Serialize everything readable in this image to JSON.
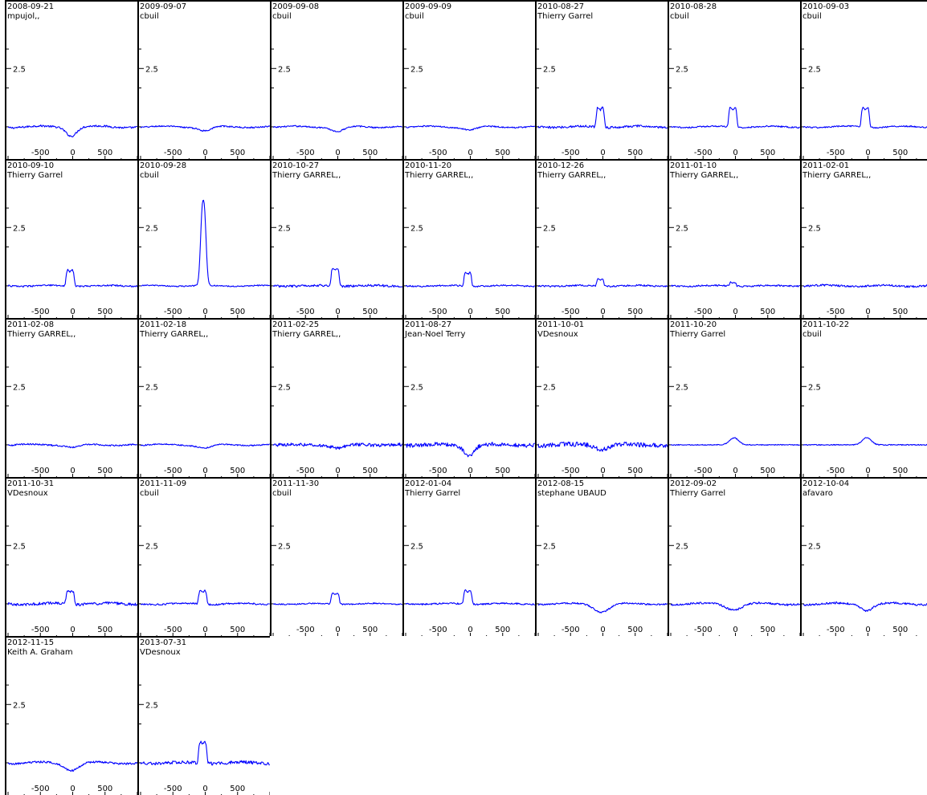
{
  "chart_data": {
    "type": "line",
    "line_color": "#0000ff",
    "xlim": [
      -1000,
      1000
    ],
    "x_ticks": [
      -500,
      0,
      500
    ],
    "x_tick_labels": [
      "-500",
      "0",
      "500"
    ],
    "y_tick_label": "2.5",
    "y_label_value": 2.5,
    "ylim": [
      0.4,
      3.6
    ],
    "panels": [
      {
        "date": "2008-09-21",
        "observer": "mpujol,,",
        "feature": "absorption",
        "depth": 0.22,
        "center": -20,
        "width": 180,
        "noise": 0.025,
        "wave": 0.04
      },
      {
        "date": "2009-09-07",
        "observer": "cbuil",
        "feature": "absorption",
        "depth": 0.1,
        "center": 0,
        "width": 220,
        "noise": 0.018,
        "wave": 0.03
      },
      {
        "date": "2009-09-08",
        "observer": "cbuil",
        "feature": "absorption",
        "depth": 0.12,
        "center": 0,
        "width": 220,
        "noise": 0.018,
        "wave": 0.03
      },
      {
        "date": "2009-09-09",
        "observer": "cbuil",
        "feature": "absorption",
        "depth": 0.08,
        "center": 0,
        "width": 220,
        "noise": 0.018,
        "wave": 0.03
      },
      {
        "date": "2010-08-27",
        "observer": "Thierry Garrel",
        "feature": "double",
        "peak": 0.55,
        "center": -40,
        "width": 150,
        "noise": 0.03,
        "wave": 0.03
      },
      {
        "date": "2010-08-28",
        "observer": "cbuil",
        "feature": "double",
        "peak": 0.55,
        "center": -40,
        "width": 150,
        "noise": 0.018,
        "wave": 0.03
      },
      {
        "date": "2010-09-03",
        "observer": "cbuil",
        "feature": "double",
        "peak": 0.55,
        "center": -40,
        "width": 150,
        "noise": 0.018,
        "wave": 0.03
      },
      {
        "date": "2010-09-10",
        "observer": "Thierry Garrel",
        "feature": "double",
        "peak": 0.45,
        "center": -40,
        "width": 150,
        "noise": 0.02,
        "wave": 0.02
      },
      {
        "date": "2010-09-28",
        "observer": "cbuil",
        "feature": "tall",
        "peak": 2.2,
        "center": -30,
        "width": 95,
        "noise": 0.015,
        "wave": 0.02
      },
      {
        "date": "2010-10-27",
        "observer": "Thierry GARREL,,",
        "feature": "double",
        "peak": 0.5,
        "center": -40,
        "width": 150,
        "noise": 0.03,
        "wave": 0.02
      },
      {
        "date": "2010-11-20",
        "observer": "Thierry GARREL,,",
        "feature": "double",
        "peak": 0.38,
        "center": -40,
        "width": 140,
        "noise": 0.02,
        "wave": 0.02
      },
      {
        "date": "2010-12-26",
        "observer": "Thierry GARREL,,",
        "feature": "double",
        "peak": 0.2,
        "center": -40,
        "width": 130,
        "noise": 0.02,
        "wave": 0.02
      },
      {
        "date": "2011-01-10",
        "observer": "Thierry GARREL,,",
        "feature": "double",
        "peak": 0.1,
        "center": -40,
        "width": 120,
        "noise": 0.02,
        "wave": 0.02
      },
      {
        "date": "2011-02-01",
        "observer": "Thierry GARREL,,",
        "feature": "flat",
        "noise": 0.025,
        "wave": 0.03
      },
      {
        "date": "2011-02-08",
        "observer": "Thierry GARREL,,",
        "feature": "absorption",
        "depth": 0.06,
        "center": 0,
        "width": 220,
        "noise": 0.02,
        "wave": 0.03
      },
      {
        "date": "2011-02-18",
        "observer": "Thierry GARREL,,",
        "feature": "absorption",
        "depth": 0.08,
        "center": 0,
        "width": 240,
        "noise": 0.015,
        "wave": 0.03
      },
      {
        "date": "2011-02-25",
        "observer": "Thierry GARREL,,",
        "feature": "absorption",
        "depth": 0.08,
        "center": 0,
        "width": 240,
        "noise": 0.04,
        "wave": 0.02
      },
      {
        "date": "2011-08-27",
        "observer": "Jean-Noel Terry",
        "feature": "absorption",
        "depth": 0.25,
        "center": -20,
        "width": 180,
        "noise": 0.05,
        "wave": 0.03
      },
      {
        "date": "2011-10-01",
        "observer": "VDesnoux",
        "feature": "absorption",
        "depth": 0.12,
        "center": -20,
        "width": 200,
        "noise": 0.06,
        "wave": 0.03
      },
      {
        "date": "2011-10-20",
        "observer": "Thierry Garrel",
        "feature": "bump",
        "peak": 0.18,
        "center": -20,
        "width": 160,
        "noise": 0.012,
        "wave": 0.0
      },
      {
        "date": "2011-10-22",
        "observer": "cbuil",
        "feature": "bump",
        "peak": 0.18,
        "center": -20,
        "width": 160,
        "noise": 0.012,
        "wave": 0.0
      },
      {
        "date": "2011-10-31",
        "observer": "VDesnoux",
        "feature": "double",
        "peak": 0.38,
        "center": -40,
        "width": 150,
        "noise": 0.035,
        "wave": 0.03
      },
      {
        "date": "2011-11-09",
        "observer": "cbuil",
        "feature": "double",
        "peak": 0.38,
        "center": -40,
        "width": 150,
        "noise": 0.02,
        "wave": 0.03
      },
      {
        "date": "2011-11-30",
        "observer": "cbuil",
        "feature": "double",
        "peak": 0.3,
        "center": -40,
        "width": 150,
        "noise": 0.015,
        "wave": 0.02
      },
      {
        "date": "2012-01-04",
        "observer": "Thierry Garrel",
        "feature": "double",
        "peak": 0.38,
        "center": -40,
        "width": 150,
        "noise": 0.02,
        "wave": 0.02
      },
      {
        "date": "2012-08-15",
        "observer": "stephane UBAUD",
        "feature": "absorption",
        "depth": 0.2,
        "center": -20,
        "width": 260,
        "noise": 0.02,
        "wave": 0.03
      },
      {
        "date": "2012-09-02",
        "observer": "Thierry Garrel",
        "feature": "absorption",
        "depth": 0.14,
        "center": -20,
        "width": 260,
        "noise": 0.025,
        "wave": 0.04
      },
      {
        "date": "2012-10-04",
        "observer": "afavaro",
        "feature": "absorption",
        "depth": 0.16,
        "center": -20,
        "width": 200,
        "noise": 0.025,
        "wave": 0.04
      },
      {
        "date": "2012-11-15",
        "observer": "Keith A. Graham",
        "feature": "absorption",
        "depth": 0.18,
        "center": -20,
        "width": 240,
        "noise": 0.025,
        "wave": 0.04
      },
      {
        "date": "2013-07-31",
        "observer": "VDesnoux",
        "feature": "double",
        "peak": 0.6,
        "center": -40,
        "width": 150,
        "noise": 0.04,
        "wave": 0.03
      }
    ]
  }
}
